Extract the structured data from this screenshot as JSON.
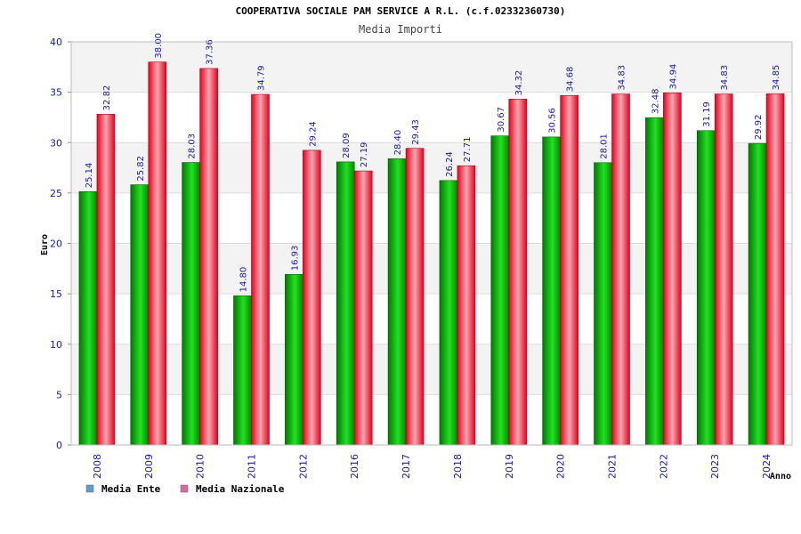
{
  "chart_data": {
    "type": "bar",
    "title": "COOPERATIVA SOCIALE PAM SERVICE A R.L. (c.f.02332360730)",
    "subtitle": "Media Importi",
    "xlabel": "Anno",
    "ylabel": "Euro",
    "ylim": [
      0,
      40
    ],
    "yticks": [
      0,
      5,
      10,
      15,
      20,
      25,
      30,
      35,
      40
    ],
    "grid": true,
    "legend_position": "bottom-left",
    "categories": [
      "2008",
      "2009",
      "2010",
      "2011",
      "2012",
      "2016",
      "2017",
      "2018",
      "2019",
      "2020",
      "2021",
      "2022",
      "2023",
      "2024"
    ],
    "series": [
      {
        "name": "Media Ente",
        "legend_color": "#5a9bd8",
        "color": "#00b400",
        "values": [
          25.14,
          25.82,
          28.03,
          14.8,
          16.93,
          28.09,
          28.4,
          26.24,
          30.67,
          30.56,
          28.01,
          32.48,
          31.19,
          29.92
        ],
        "labels": [
          "25.14",
          "25.82",
          "28.03",
          "14.80",
          "16.93",
          "28.09",
          "28.40",
          "26.24",
          "30.67",
          "30.56",
          "28.01",
          "32.48",
          "31.19",
          "29.92"
        ]
      },
      {
        "name": "Media Nazionale",
        "legend_color": "#d86aa0",
        "color": "#e8102a",
        "values": [
          32.82,
          38.0,
          37.36,
          34.79,
          29.24,
          27.19,
          29.43,
          27.71,
          34.32,
          34.68,
          34.83,
          34.94,
          34.83,
          34.85
        ],
        "labels": [
          "32.82",
          "38.00",
          "37.36",
          "34.79",
          "29.24",
          "27.19",
          "29.43",
          "27.71",
          "34.32",
          "34.68",
          "34.83",
          "34.94",
          "34.83",
          "34.85"
        ]
      }
    ]
  }
}
